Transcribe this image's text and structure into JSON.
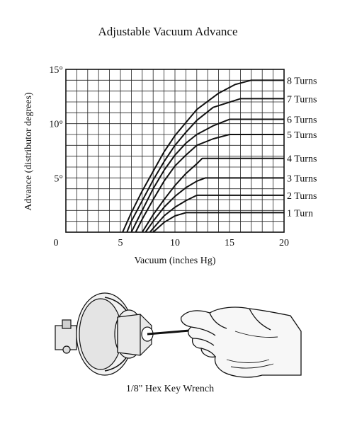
{
  "chart_data": {
    "type": "line",
    "title": "Adjustable Vacuum Advance",
    "xlabel": "Vacuum (inches Hg)",
    "ylabel": "Advance (distributor degrees)",
    "xlim": [
      0,
      20
    ],
    "ylim": [
      0,
      15
    ],
    "x_ticks": [
      "0",
      "5",
      "10",
      "15",
      "20"
    ],
    "y_ticks": [
      "5°",
      "10°",
      "15°"
    ],
    "grid": true,
    "series": [
      {
        "name": "1 Turn",
        "points": [
          [
            8,
            0
          ],
          [
            9,
            0.9
          ],
          [
            10,
            1.5
          ],
          [
            11,
            1.8
          ],
          [
            20,
            1.8
          ]
        ]
      },
      {
        "name": "2 Turns",
        "points": [
          [
            7.7,
            0
          ],
          [
            9,
            1.5
          ],
          [
            10,
            2.3
          ],
          [
            11,
            2.9
          ],
          [
            12,
            3.4
          ],
          [
            20,
            3.4
          ]
        ]
      },
      {
        "name": "3 Turns",
        "points": [
          [
            7.3,
            0
          ],
          [
            8,
            1
          ],
          [
            9,
            2.3
          ],
          [
            10,
            3.3
          ],
          [
            11,
            4.1
          ],
          [
            12,
            4.7
          ],
          [
            12.8,
            5
          ],
          [
            20,
            5
          ]
        ]
      },
      {
        "name": "4 Turns",
        "points": [
          [
            7,
            0
          ],
          [
            8,
            1.6
          ],
          [
            9,
            3
          ],
          [
            10,
            4.3
          ],
          [
            11,
            5.4
          ],
          [
            12,
            6.3
          ],
          [
            12.5,
            6.8
          ],
          [
            20,
            6.8
          ]
        ]
      },
      {
        "name": "5 Turns",
        "points": [
          [
            6.4,
            0
          ],
          [
            7,
            1.2
          ],
          [
            8,
            3
          ],
          [
            9,
            4.7
          ],
          [
            10,
            6.1
          ],
          [
            11,
            7.1
          ],
          [
            12,
            8
          ],
          [
            13.5,
            8.6
          ],
          [
            15,
            9
          ],
          [
            20,
            9
          ]
        ]
      },
      {
        "name": "6 Turns",
        "points": [
          [
            6,
            0
          ],
          [
            7,
            2
          ],
          [
            8,
            4
          ],
          [
            9,
            5.7
          ],
          [
            10,
            7.1
          ],
          [
            11,
            8.2
          ],
          [
            12,
            9
          ],
          [
            13.5,
            9.8
          ],
          [
            15,
            10.4
          ],
          [
            20,
            10.4
          ]
        ]
      },
      {
        "name": "7 Turns",
        "points": [
          [
            5.6,
            0
          ],
          [
            6,
            1
          ],
          [
            7,
            2.9
          ],
          [
            8,
            4.8
          ],
          [
            9,
            6.5
          ],
          [
            10,
            8
          ],
          [
            11,
            9.2
          ],
          [
            12,
            10.3
          ],
          [
            13.5,
            11.5
          ],
          [
            16,
            12.3
          ],
          [
            20,
            12.3
          ]
        ]
      },
      {
        "name": "8 Turns",
        "points": [
          [
            5.2,
            0
          ],
          [
            6,
            1.8
          ],
          [
            7,
            3.8
          ],
          [
            8,
            5.6
          ],
          [
            9,
            7.4
          ],
          [
            10,
            8.9
          ],
          [
            11,
            10.1
          ],
          [
            12,
            11.3
          ],
          [
            14,
            12.8
          ],
          [
            15.5,
            13.6
          ],
          [
            17,
            14
          ],
          [
            20,
            14
          ]
        ]
      }
    ]
  },
  "illustration": {
    "caption": "1/8\" Hex Key Wrench"
  }
}
